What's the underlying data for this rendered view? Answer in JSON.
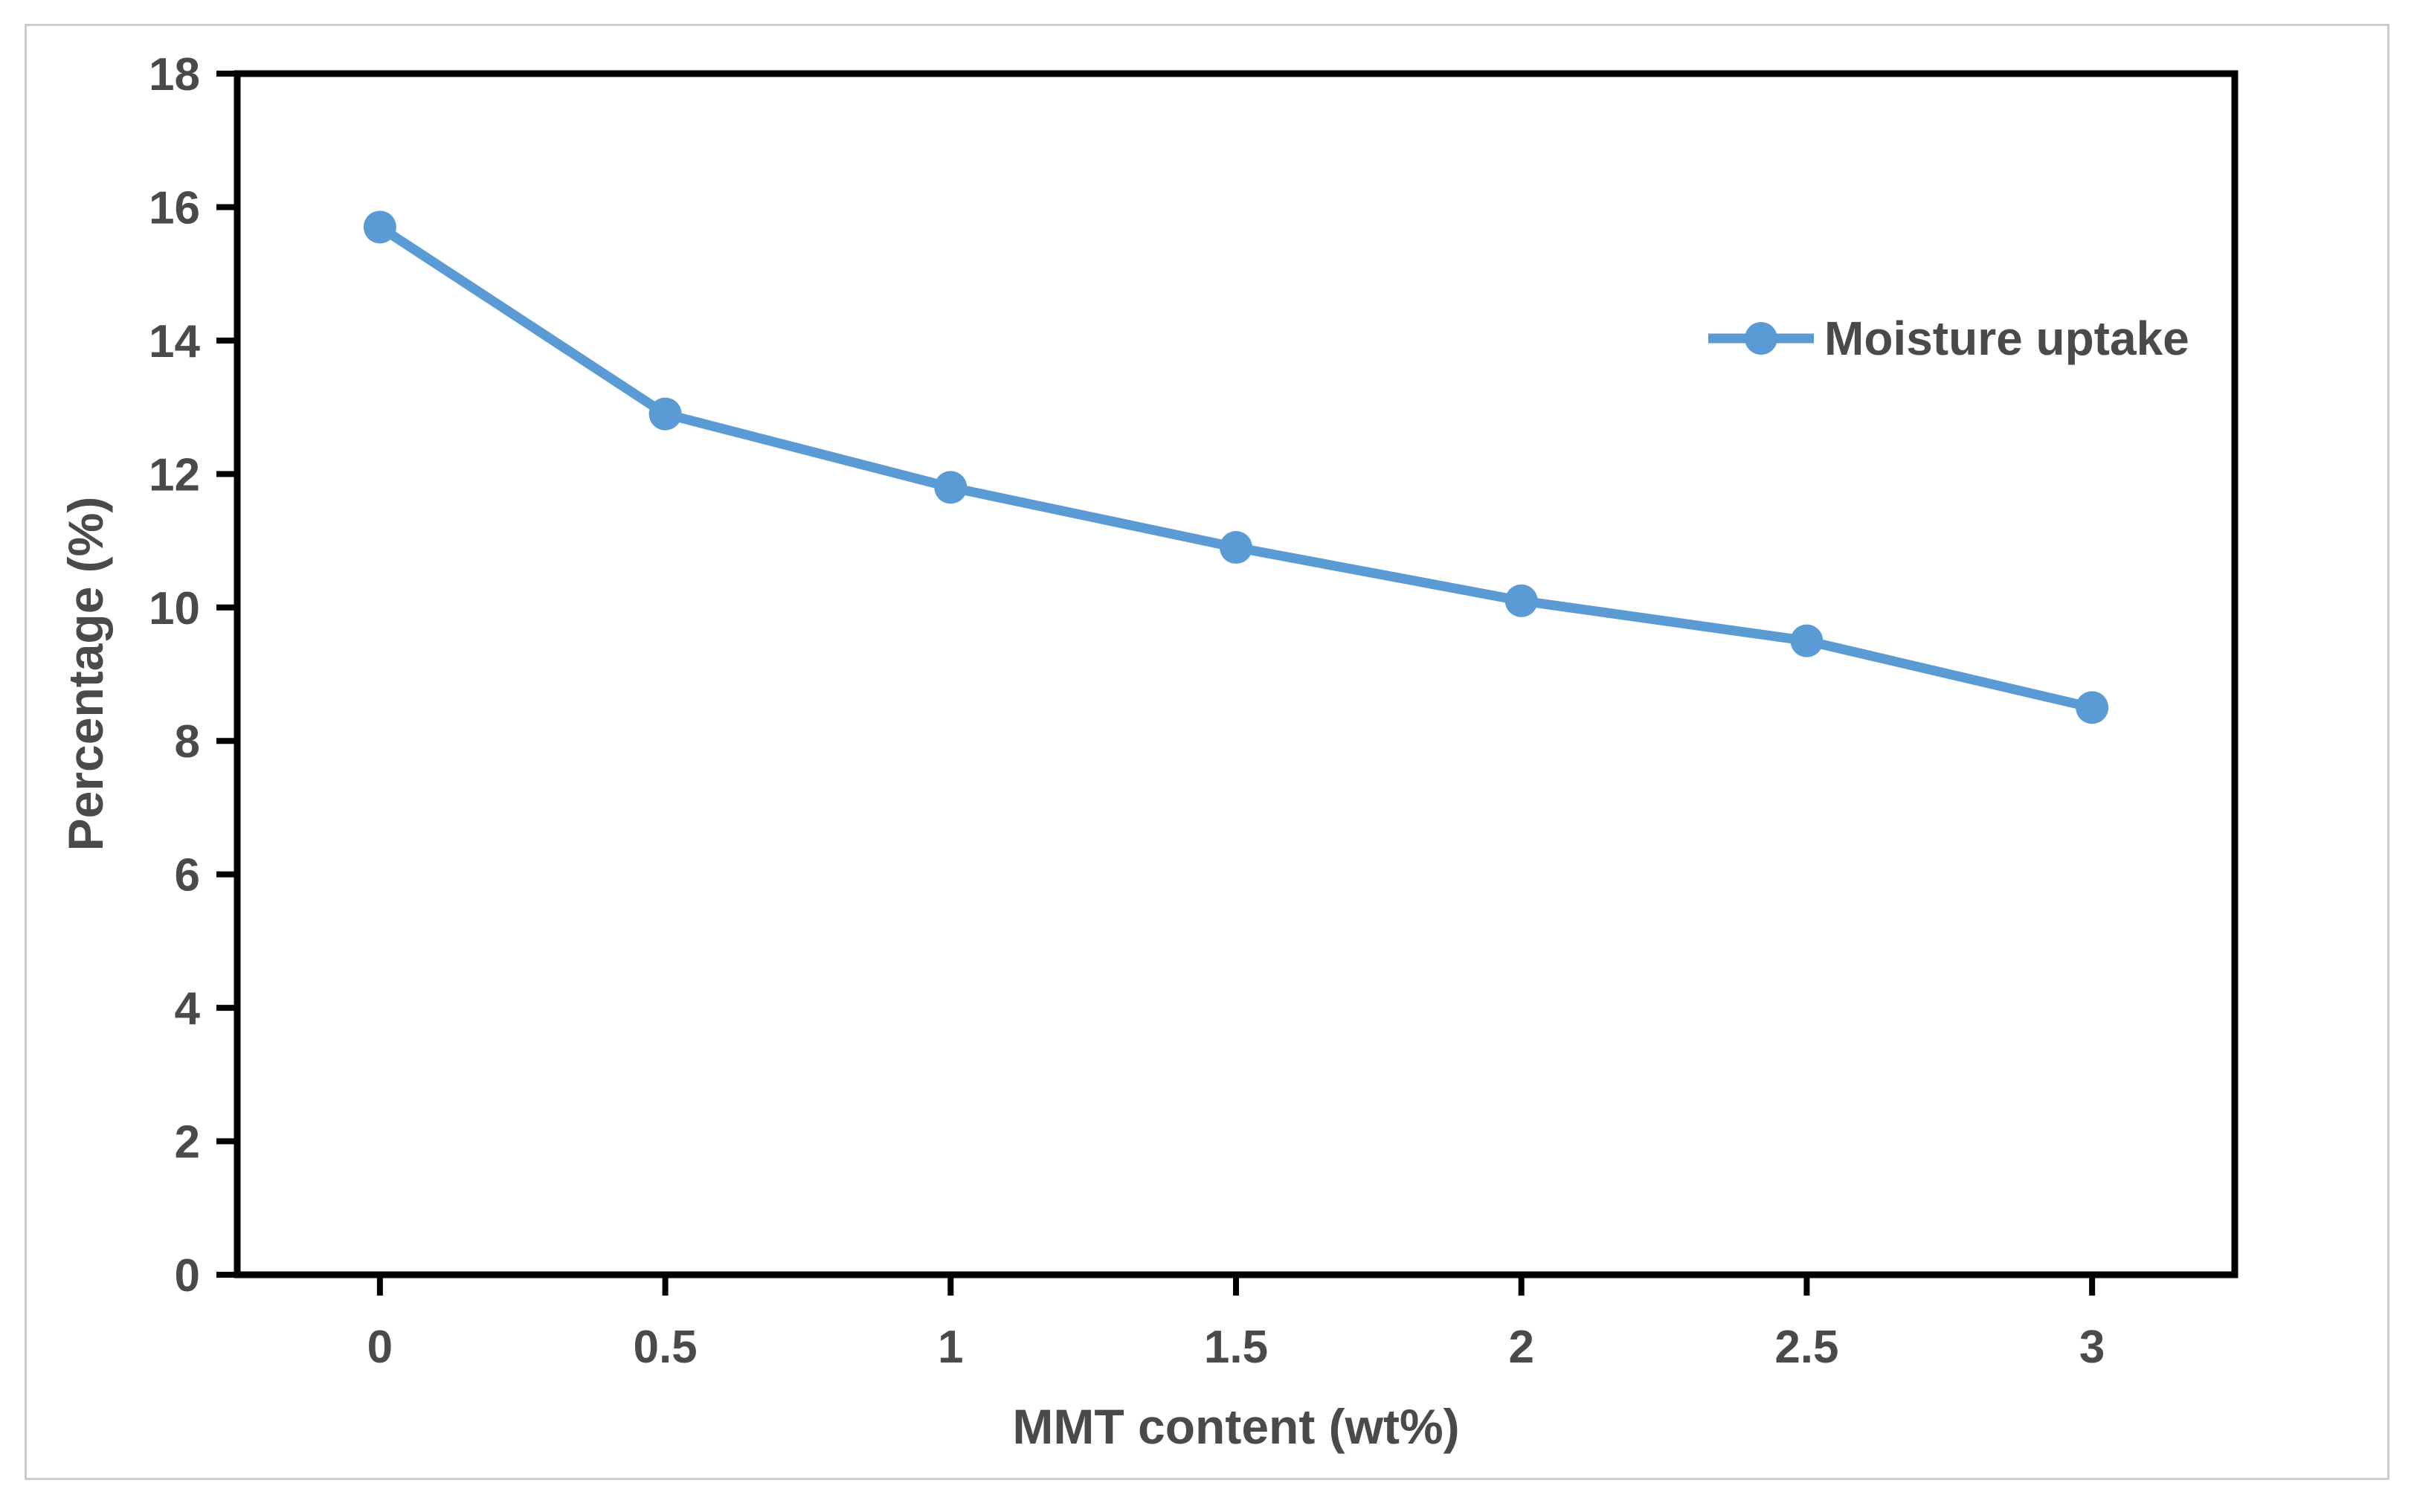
{
  "figure": {
    "background": "#ffffff",
    "border_color": "#cccccc"
  },
  "chart_data": {
    "type": "line",
    "title": "",
    "xlabel": "MMT content (wt%)",
    "ylabel": "Percentage (%)",
    "categories": [
      "0",
      "0.5",
      "1",
      "1.5",
      "2",
      "2.5",
      "3"
    ],
    "series": [
      {
        "name": "Moisture uptake",
        "values": [
          15.7,
          12.9,
          11.8,
          10.9,
          10.1,
          9.5,
          8.5
        ],
        "color": "#5B9BD5"
      }
    ],
    "ylim": [
      0,
      18
    ],
    "ytick_step": 2,
    "yticks": [
      0,
      2,
      4,
      6,
      8,
      10,
      12,
      14,
      16,
      18
    ],
    "grid": "off",
    "legend_position": "inside-top-right",
    "marker": "circle",
    "axis_text_color": "#4a4a4a",
    "frame_color": "#000000"
  }
}
